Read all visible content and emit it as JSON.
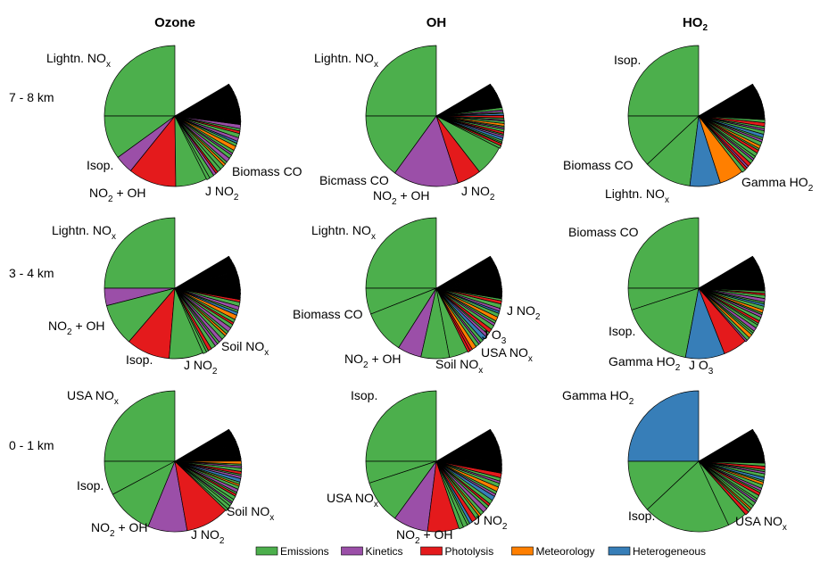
{
  "chart_data": [
    {
      "type": "pie",
      "title": "Ozone",
      "row_label": "7 - 8 km",
      "bigs": [
        0.25,
        0.1,
        0.042,
        0.11,
        0.072
      ],
      "labels": [
        "Lightn. NOx",
        "Isop.",
        "NO2 + OH",
        "J NO2",
        "Biomass CO"
      ]
    },
    {
      "type": "pie",
      "title": "OH",
      "row_label": "7 - 8 km",
      "bigs": [
        0.25,
        0.15,
        0.15,
        0.055,
        0.07
      ],
      "labels": [
        "Lightn. NOx",
        "Bicmass CO",
        "NO2 + OH",
        "J NO2"
      ]
    },
    {
      "type": "pie",
      "title": "HO2",
      "row_label": "7 - 8 km",
      "bigs": [
        0.25,
        0.12,
        0.11,
        0.07,
        0.055
      ],
      "labels": [
        "Isop.",
        "Biomass CO",
        "Lightn. NOx",
        "Gamma HO2"
      ]
    },
    {
      "type": "pie",
      "title": "Ozone",
      "row_label": "3 - 4 km",
      "bigs": [
        0.25,
        0.04,
        0.097,
        0.1,
        0.078
      ],
      "labels": [
        "Lightn. NOx",
        "NO2 + OH",
        "Isop.",
        "J NO2",
        "Soil NOx"
      ]
    },
    {
      "type": "pie",
      "title": "OH",
      "row_label": "3 - 4 km",
      "bigs": [
        0.25,
        0.06,
        0.1,
        0.055,
        0.065,
        0.043
      ],
      "labels": [
        "Lightn. NOx",
        "Biomass CO",
        "NO2 + OH",
        "Soil NOx",
        "USA NOx",
        "J O3",
        "J NO2"
      ]
    },
    {
      "type": "pie",
      "title": "HO2",
      "row_label": "3 - 4 km",
      "bigs": [
        0.25,
        0.05,
        0.17,
        0.09,
        0.055
      ],
      "labels": [
        "Biomass CO",
        "Isop.",
        "Gamma HO2",
        "J O3"
      ]
    },
    {
      "type": "pie",
      "title": "Ozone",
      "row_label": "0 - 1 km",
      "bigs": [
        0.25,
        0.078,
        0.11,
        0.09,
        0.1
      ],
      "labels": [
        "USA NOx",
        "Isop.",
        "NO2 + OH",
        "J NO2",
        "Soil NOx"
      ]
    },
    {
      "type": "pie",
      "title": "OH",
      "row_label": "0 - 1 km",
      "bigs": [
        0.25,
        0.05,
        0.1,
        0.08,
        0.072
      ],
      "labels": [
        "Isop.",
        "USA NOx",
        "NO2 + OH",
        "J NO2"
      ]
    },
    {
      "type": "pie",
      "title": "HO2",
      "row_label": "0 - 1 km",
      "bigs": [
        0.25,
        0.12,
        0.2,
        0.045
      ],
      "labels": [
        "Gamma HO2",
        "Isop.",
        "USA NOx"
      ]
    }
  ],
  "column_titles": [
    [
      "Ozone"
    ],
    [
      "OH"
    ],
    [
      "HO",
      "2"
    ]
  ],
  "row_titles": [
    "7 - 8 km",
    "3 - 4 km",
    "0 - 1 km"
  ],
  "colors": {
    "emissions": "#4caf4c",
    "kinetics": "#9b4fa8",
    "photolysis": "#e41a1c",
    "meteorology": "#ff7f00",
    "heterogeneous": "#377eb8",
    "small": "#000000"
  },
  "legend": [
    {
      "name": "Emissions",
      "color": "#4caf4c"
    },
    {
      "name": "Kinetics",
      "color": "#9b4fa8"
    },
    {
      "name": "Photolysis",
      "color": "#e41a1c"
    },
    {
      "name": "Meteorology",
      "color": "#ff7f00"
    },
    {
      "name": "Heterogeneous",
      "color": "#377eb8"
    }
  ],
  "panels": [
    {
      "bigs": [
        [
          "emissions",
          0.25
        ],
        [
          "emissions",
          0.1
        ],
        [
          "kinetics",
          0.042
        ],
        [
          "photolysis",
          0.11
        ],
        [
          "emissions",
          0.072
        ]
      ],
      "smalls": [
        "emissions",
        "emissions",
        "kinetics",
        "photolysis",
        "emissions",
        "emissions",
        "orange",
        "emissions",
        "kinetics",
        "emissions",
        "kinetics",
        "emissions",
        "orange",
        "emissions",
        "blue",
        "kinetics",
        "emissions",
        "photolysis",
        "emissions",
        "kinetics"
      ],
      "labels": [
        [
          [
            "Lightn. NO"
          ],
          [
            "x"
          ]
        ],
        [
          [
            "Isop."
          ]
        ],
        [
          [
            "NO"
          ],
          [
            "2"
          ],
          [
            " + OH"
          ]
        ],
        [
          [
            "J NO"
          ],
          [
            "2"
          ]
        ],
        [
          [
            "Biomass CO"
          ]
        ]
      ]
    },
    {
      "bigs": [
        [
          "emissions",
          0.25
        ],
        [
          "emissions",
          0.15
        ],
        [
          "kinetics",
          0.15
        ],
        [
          "photolysis",
          0.055
        ],
        [
          "emissions",
          0.07
        ]
      ],
      "smalls": [
        "emissions",
        "photolysis",
        "emissions",
        "emissions",
        "blue",
        "kinetics",
        "emissions",
        "photolysis",
        "emissions",
        "kinetics",
        "emissions",
        "orange",
        "emissions",
        "kinetics",
        "emissions",
        "photolysis",
        "blue",
        "emissions",
        "kinetics",
        "emissions"
      ],
      "labels": [
        [
          [
            "Lightn. NO"
          ],
          [
            "x"
          ]
        ],
        [
          [
            "Bicmass CO"
          ]
        ],
        [
          [
            "NO"
          ],
          [
            "2"
          ],
          [
            " + OH"
          ]
        ],
        [
          [
            "J NO"
          ],
          [
            "2"
          ]
        ]
      ]
    },
    {
      "bigs": [
        [
          "emissions",
          0.25
        ],
        [
          "emissions",
          0.12
        ],
        [
          "emissions",
          0.11
        ],
        [
          "blue",
          0.07
        ],
        [
          "orange",
          0.055
        ]
      ],
      "smalls": [
        "emissions",
        "photolysis",
        "kinetics",
        "photolysis",
        "emissions",
        "kinetics",
        "emissions",
        "emissions",
        "photolysis",
        "emissions",
        "orange",
        "emissions",
        "kinetics",
        "emissions",
        "blue",
        "emissions",
        "kinetics",
        "emissions",
        "photolysis",
        "emissions"
      ],
      "labels": [
        [
          [
            "Isop."
          ]
        ],
        [
          [
            "Biomass CO"
          ]
        ],
        [
          [
            "Lightn. NO"
          ],
          [
            "x"
          ]
        ],
        [
          [
            "Gamma HO"
          ],
          [
            "2"
          ]
        ]
      ]
    },
    {
      "bigs": [
        [
          "emissions",
          0.25
        ],
        [
          "kinetics",
          0.04
        ],
        [
          "emissions",
          0.097
        ],
        [
          "photolysis",
          0.1
        ],
        [
          "emissions",
          0.078
        ]
      ],
      "smalls": [
        "emissions",
        "emissions",
        "photolysis",
        "emissions",
        "kinetics",
        "emissions",
        "kinetics",
        "emissions",
        "orange",
        "emissions",
        "kinetics",
        "emissions",
        "photolysis",
        "emissions",
        "orange",
        "blue",
        "emissions",
        "kinetics",
        "emissions",
        "photolysis"
      ],
      "labels": [
        [
          [
            "Lightn. NO"
          ],
          [
            "x"
          ]
        ],
        [
          [
            "NO"
          ],
          [
            "2"
          ],
          [
            " + OH"
          ]
        ],
        [
          [
            "Isop."
          ]
        ],
        [
          [
            "J NO"
          ],
          [
            "2"
          ]
        ],
        [
          [
            "Soil NO"
          ],
          [
            "x"
          ]
        ]
      ]
    },
    {
      "bigs": [
        [
          "emissions",
          0.25
        ],
        [
          "emissions",
          0.06
        ],
        [
          "emissions",
          0.1
        ],
        [
          "kinetics",
          0.055
        ],
        [
          "emissions",
          0.065
        ],
        [
          "emissions",
          0.043
        ]
      ],
      "smalls": [
        "photolysis",
        "photolysis",
        "orange",
        "emissions",
        "kinetics",
        "emissions",
        "blue",
        "kinetics",
        "emissions",
        "photolysis",
        "emissions",
        "kinetics",
        "emissions",
        "orange",
        "emissions",
        "blue",
        "kinetics",
        "emissions",
        "photolysis",
        "emissions"
      ],
      "labels": [
        [
          [
            "Lightn. NO"
          ],
          [
            "x"
          ]
        ],
        [
          [
            "Biomass CO"
          ]
        ],
        [
          [
            "NO"
          ],
          [
            "2"
          ],
          [
            " + OH"
          ]
        ],
        [
          [
            "Soil NO"
          ],
          [
            "x"
          ]
        ],
        [
          [
            "USA NO"
          ],
          [
            "x"
          ]
        ],
        [
          [
            "J O"
          ],
          [
            "3"
          ]
        ],
        [
          [
            "J NO"
          ],
          [
            "2"
          ]
        ]
      ]
    },
    {
      "bigs": [
        [
          "emissions",
          0.25
        ],
        [
          "emissions",
          0.05
        ],
        [
          "emissions",
          0.17
        ],
        [
          "blue",
          0.09
        ],
        [
          "photolysis",
          0.055
        ]
      ],
      "smalls": [
        "kinetics",
        "emissions",
        "orange",
        "emissions",
        "emissions",
        "kinetics",
        "emissions",
        "emissions",
        "photolysis",
        "emissions",
        "kinetics",
        "emissions",
        "orange",
        "emissions",
        "blue",
        "emissions",
        "kinetics",
        "emissions",
        "photolysis",
        "emissions"
      ],
      "labels": [
        [
          [
            "Biomass CO"
          ]
        ],
        [
          [
            "Isop."
          ]
        ],
        [
          [
            "Gamma HO"
          ],
          [
            "2"
          ]
        ],
        [
          [
            "J O"
          ],
          [
            "3"
          ]
        ]
      ]
    },
    {
      "bigs": [
        [
          "emissions",
          0.25
        ],
        [
          "emissions",
          0.078
        ],
        [
          "emissions",
          0.11
        ],
        [
          "kinetics",
          0.09
        ],
        [
          "photolysis",
          0.1
        ]
      ],
      "smalls": [
        "emissions",
        "emissions",
        "emissions",
        "kinetics",
        "emissions",
        "emissions",
        "photolysis",
        "emissions",
        "kinetics",
        "emissions",
        "orange",
        "emissions",
        "blue",
        "kinetics",
        "emissions",
        "photolysis",
        "emissions",
        "kinetics",
        "emissions",
        "orange"
      ],
      "labels": [
        [
          [
            "USA NO"
          ],
          [
            "x"
          ]
        ],
        [
          [
            "Isop."
          ]
        ],
        [
          [
            "NO"
          ],
          [
            "2"
          ],
          [
            " + OH"
          ]
        ],
        [
          [
            "J NO"
          ],
          [
            "2"
          ]
        ],
        [
          [
            "Soil NO"
          ],
          [
            "x"
          ]
        ]
      ]
    },
    {
      "bigs": [
        [
          "emissions",
          0.25
        ],
        [
          "emissions",
          0.05
        ],
        [
          "emissions",
          0.1
        ],
        [
          "kinetics",
          0.08
        ],
        [
          "photolysis",
          0.072
        ]
      ],
      "smalls": [
        "emissions",
        "emissions",
        "emissions",
        "blue",
        "photolysis",
        "emissions",
        "orange",
        "emissions",
        "kinetics",
        "emissions",
        "photolysis",
        "emissions",
        "blue",
        "kinetics",
        "emissions",
        "orange",
        "emissions",
        "kinetics",
        "emissions",
        "photolysis"
      ],
      "labels": [
        [
          [
            "Isop."
          ]
        ],
        [
          [
            "USA NO"
          ],
          [
            "x"
          ]
        ],
        [
          [
            "NO"
          ],
          [
            "2"
          ],
          [
            " + OH"
          ]
        ],
        [
          [
            "J NO"
          ],
          [
            "2"
          ]
        ]
      ]
    },
    {
      "bigs": [
        [
          "blue",
          0.25
        ],
        [
          "emissions",
          0.12
        ],
        [
          "emissions",
          0.2
        ],
        [
          "emissions",
          0.045
        ]
      ],
      "smalls": [
        "photolysis",
        "emissions",
        "orange",
        "emissions",
        "emissions",
        "kinetics",
        "emissions",
        "emissions",
        "photolysis",
        "emissions",
        "kinetics",
        "emissions",
        "orange",
        "emissions",
        "blue",
        "emissions",
        "kinetics",
        "emissions",
        "photolysis",
        "emissions"
      ],
      "labels": [
        [
          [
            "Gamma HO"
          ],
          [
            "2"
          ]
        ],
        [
          [
            "Isop."
          ]
        ],
        [
          [
            "USA NO"
          ],
          [
            "x"
          ]
        ]
      ]
    }
  ]
}
